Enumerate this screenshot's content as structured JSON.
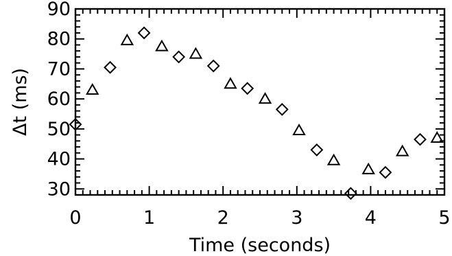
{
  "chart_data": {
    "type": "scatter",
    "title": "",
    "xlabel": "Time (seconds)",
    "ylabel": "Δt (ms)",
    "xlim": [
      0,
      5
    ],
    "ylim": [
      28,
      90
    ],
    "x_ticks": [
      0,
      1,
      2,
      3,
      4,
      5
    ],
    "y_ticks": [
      30,
      40,
      50,
      60,
      70,
      80,
      90
    ],
    "x_tick_labels": [
      "0",
      "1",
      "2",
      "3",
      "4",
      "5"
    ],
    "y_tick_labels": [
      "30",
      "40",
      "50",
      "60",
      "70",
      "80",
      "90"
    ],
    "grid": false,
    "legend": "none",
    "series": [
      {
        "marker": "diamond",
        "points": [
          {
            "x": 0.0,
            "y": 51.5
          },
          {
            "x": 0.47,
            "y": 70.5
          },
          {
            "x": 0.93,
            "y": 82.0
          },
          {
            "x": 1.4,
            "y": 74.0
          },
          {
            "x": 1.87,
            "y": 71.0
          },
          {
            "x": 2.33,
            "y": 63.5
          },
          {
            "x": 2.8,
            "y": 56.5
          },
          {
            "x": 3.27,
            "y": 43.0
          },
          {
            "x": 3.73,
            "y": 28.5
          },
          {
            "x": 4.2,
            "y": 35.5
          },
          {
            "x": 4.67,
            "y": 46.5
          }
        ]
      },
      {
        "marker": "triangle",
        "points": [
          {
            "x": 0.23,
            "y": 63.0
          },
          {
            "x": 0.7,
            "y": 79.5
          },
          {
            "x": 1.17,
            "y": 77.5
          },
          {
            "x": 1.63,
            "y": 75.0
          },
          {
            "x": 2.1,
            "y": 65.0
          },
          {
            "x": 2.57,
            "y": 60.0
          },
          {
            "x": 3.03,
            "y": 49.5
          },
          {
            "x": 3.5,
            "y": 39.5
          },
          {
            "x": 3.97,
            "y": 36.5
          },
          {
            "x": 4.43,
            "y": 42.5
          },
          {
            "x": 4.9,
            "y": 47.0
          }
        ]
      }
    ]
  }
}
